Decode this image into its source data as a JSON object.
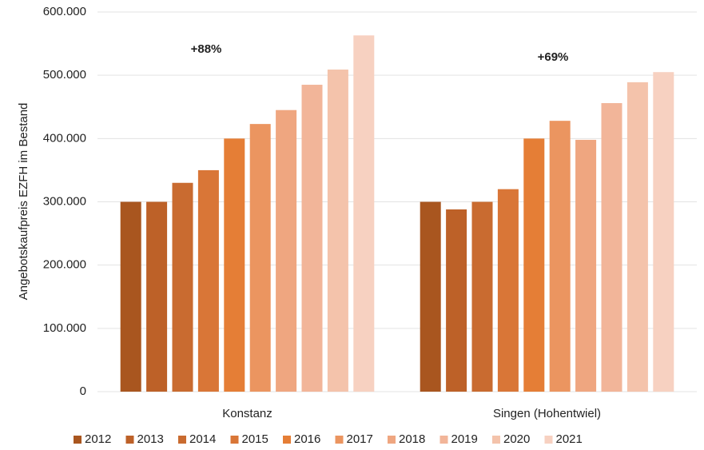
{
  "chart_data": {
    "type": "bar",
    "ylabel": "Angebotskaufpreis EZFH im Bestand",
    "categories": [
      "Konstanz",
      "Singen (Hohentwiel)"
    ],
    "annotations": [
      "+88%",
      "+69%"
    ],
    "series": [
      {
        "name": "2012",
        "color": "#a9561f",
        "values": [
          300000,
          300000
        ]
      },
      {
        "name": "2013",
        "color": "#bd6128",
        "values": [
          300000,
          288000
        ]
      },
      {
        "name": "2014",
        "color": "#c96b30",
        "values": [
          330000,
          300000
        ]
      },
      {
        "name": "2015",
        "color": "#d97637",
        "values": [
          350000,
          320000
        ]
      },
      {
        "name": "2016",
        "color": "#e57e36",
        "values": [
          400000,
          400000
        ]
      },
      {
        "name": "2017",
        "color": "#eb9560",
        "values": [
          423000,
          428000
        ]
      },
      {
        "name": "2018",
        "color": "#efa680",
        "values": [
          445000,
          398000
        ]
      },
      {
        "name": "2019",
        "color": "#f2b599",
        "values": [
          485000,
          456000
        ]
      },
      {
        "name": "2020",
        "color": "#f4c3ab",
        "values": [
          509000,
          489000
        ]
      },
      {
        "name": "2021",
        "color": "#f7d1c1",
        "values": [
          563000,
          505000
        ]
      }
    ],
    "ylim": [
      0,
      600000
    ],
    "yticks": [
      0,
      {
        "value": 100000,
        "label": "100.000"
      },
      {
        "value": 200000,
        "label": "200.000"
      },
      {
        "value": 300000,
        "label": "300.000"
      },
      {
        "value": 400000,
        "label": "400.000"
      },
      {
        "value": 500000,
        "label": "500.000"
      },
      {
        "value": 600000,
        "label": "600.000"
      }
    ],
    "grid": true,
    "legend": "bottom"
  }
}
